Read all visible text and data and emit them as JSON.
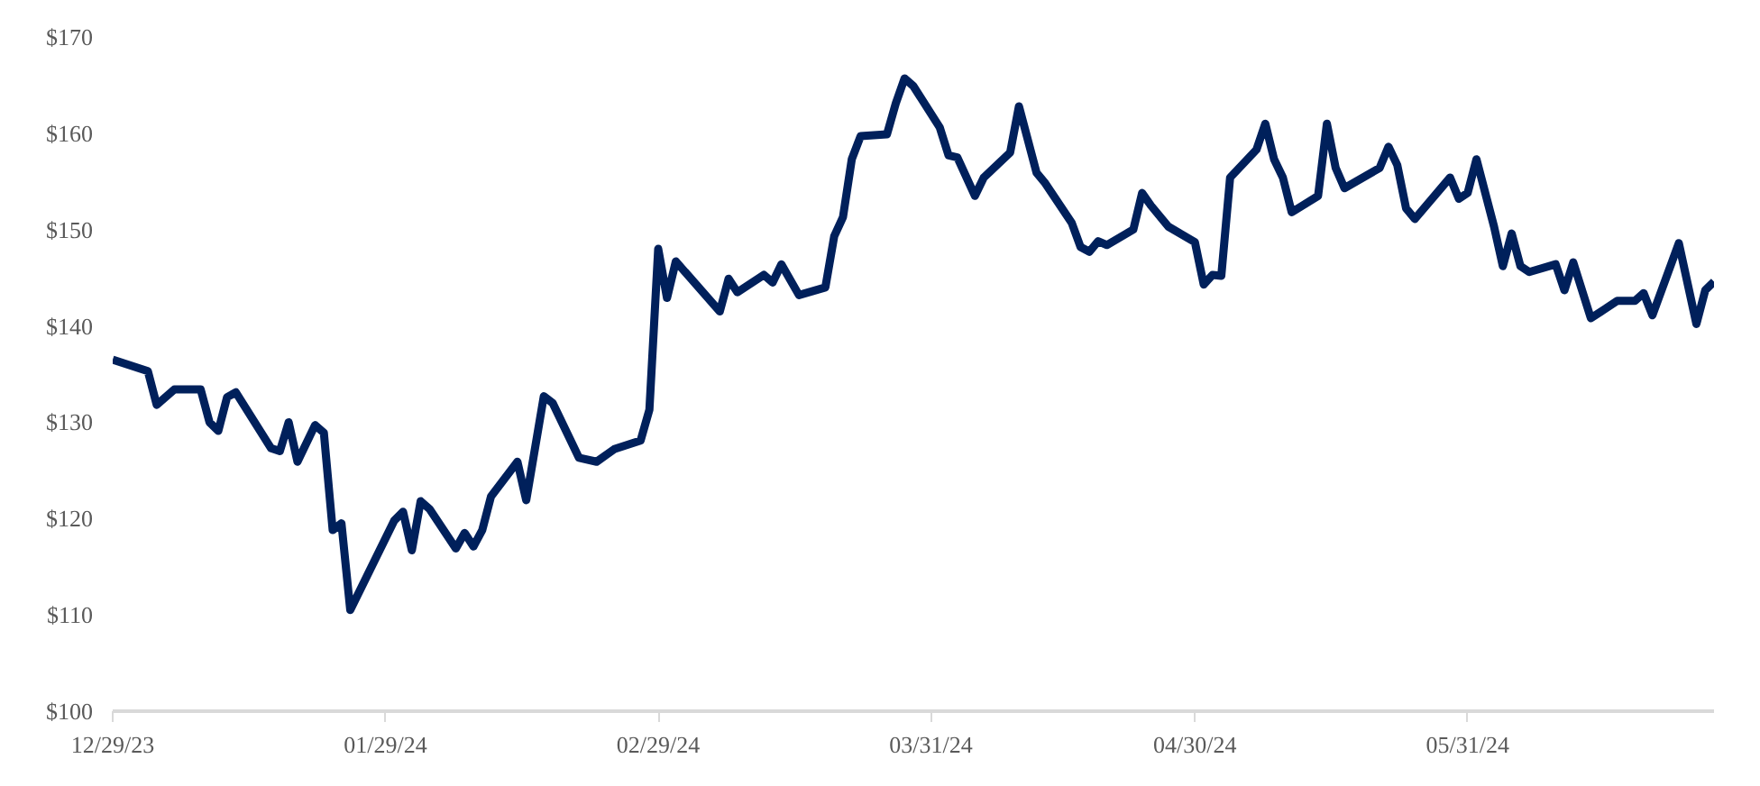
{
  "chart_data": {
    "type": "line",
    "x": [
      "2023-12-29",
      "2024-01-02",
      "2024-01-03",
      "2024-01-05",
      "2024-01-08",
      "2024-01-09",
      "2024-01-10",
      "2024-01-11",
      "2024-01-12",
      "2024-01-16",
      "2024-01-17",
      "2024-01-18",
      "2024-01-19",
      "2024-01-21",
      "2024-01-22",
      "2024-01-23",
      "2024-01-24",
      "2024-01-25",
      "2024-01-30",
      "2024-01-31",
      "2024-02-01",
      "2024-02-02",
      "2024-02-03",
      "2024-02-06",
      "2024-02-07",
      "2024-02-08",
      "2024-02-09",
      "2024-02-10",
      "2024-02-13",
      "2024-02-14",
      "2024-02-16",
      "2024-02-17",
      "2024-02-20",
      "2024-02-22",
      "2024-02-24",
      "2024-02-27",
      "2024-02-28",
      "2024-02-29",
      "2024-03-01",
      "2024-03-02",
      "2024-03-07",
      "2024-03-08",
      "2024-03-09",
      "2024-03-12",
      "2024-03-13",
      "2024-03-14",
      "2024-03-16",
      "2024-03-19",
      "2024-03-20",
      "2024-03-21",
      "2024-03-22",
      "2024-03-23",
      "2024-03-26",
      "2024-03-27",
      "2024-03-28",
      "2024-03-29",
      "2024-04-01",
      "2024-04-02",
      "2024-04-03",
      "2024-04-05",
      "2024-04-06",
      "2024-04-09",
      "2024-04-10",
      "2024-04-12",
      "2024-04-13",
      "2024-04-16",
      "2024-04-17",
      "2024-04-18",
      "2024-04-19",
      "2024-04-20",
      "2024-04-23",
      "2024-04-24",
      "2024-04-25",
      "2024-04-27",
      "2024-04-30",
      "2024-05-01",
      "2024-05-02",
      "2024-05-03",
      "2024-05-04",
      "2024-05-07",
      "2024-05-08",
      "2024-05-09",
      "2024-05-10",
      "2024-05-11",
      "2024-05-14",
      "2024-05-15",
      "2024-05-16",
      "2024-05-17",
      "2024-05-21",
      "2024-05-22",
      "2024-05-23",
      "2024-05-24",
      "2024-05-25",
      "2024-05-29",
      "2024-05-30",
      "2024-05-31",
      "2024-06-01",
      "2024-06-03",
      "2024-06-04",
      "2024-06-05",
      "2024-06-06",
      "2024-06-07",
      "2024-06-10",
      "2024-06-11",
      "2024-06-12",
      "2024-06-14",
      "2024-06-17",
      "2024-06-19",
      "2024-06-20",
      "2024-06-21",
      "2024-06-24",
      "2024-06-26",
      "2024-06-27",
      "2024-06-28"
    ],
    "series": [
      {
        "color": "#00205b",
        "values": [
          136.5,
          135.3,
          131.8,
          133.4,
          133.4,
          130.0,
          129.1,
          132.6,
          133.1,
          127.3,
          127.0,
          130.0,
          125.9,
          129.7,
          128.9,
          118.8,
          119.5,
          110.5,
          119.8,
          120.7,
          116.7,
          121.8,
          121.0,
          116.9,
          118.5,
          117.1,
          118.8,
          122.3,
          125.9,
          121.9,
          132.7,
          132.0,
          126.3,
          125.9,
          127.2,
          128.1,
          131.3,
          148.0,
          142.9,
          146.7,
          141.5,
          144.9,
          143.5,
          145.3,
          144.5,
          146.4,
          143.2,
          144.0,
          149.3,
          151.3,
          157.3,
          159.7,
          159.9,
          163.1,
          165.7,
          164.9,
          160.6,
          157.7,
          157.5,
          153.5,
          155.4,
          158.0,
          162.8,
          155.9,
          154.8,
          150.7,
          148.2,
          147.7,
          148.8,
          148.4,
          150.0,
          153.8,
          152.5,
          150.3,
          148.7,
          144.3,
          145.3,
          145.2,
          155.4,
          158.3,
          161.0,
          157.3,
          155.4,
          151.8,
          153.5,
          161.0,
          156.4,
          154.3,
          156.4,
          158.6,
          156.7,
          152.2,
          151.1,
          155.4,
          153.2,
          153.8,
          157.3,
          150.3,
          146.2,
          149.6,
          146.2,
          145.6,
          146.4,
          143.7,
          146.6,
          140.8,
          142.6,
          142.6,
          143.4,
          141.1,
          148.6,
          140.2,
          143.7,
          144.6
        ]
      }
    ],
    "xlim": [
      "2023-12-29",
      "2024-06-28"
    ],
    "xticks": [
      {
        "value": "2023-12-29",
        "label": "12/29/23"
      },
      {
        "value": "2024-01-29",
        "label": "01/29/24"
      },
      {
        "value": "2024-02-29",
        "label": "02/29/24"
      },
      {
        "value": "2024-03-31",
        "label": "03/31/24"
      },
      {
        "value": "2024-04-30",
        "label": "04/30/24"
      },
      {
        "value": "2024-05-31",
        "label": "05/31/24"
      }
    ],
    "ylim": [
      100,
      170
    ],
    "yticks": [
      {
        "value": 100,
        "label": "$100"
      },
      {
        "value": 110,
        "label": "$110"
      },
      {
        "value": 120,
        "label": "$120"
      },
      {
        "value": 130,
        "label": "$130"
      },
      {
        "value": 140,
        "label": "$140"
      },
      {
        "value": 150,
        "label": "$150"
      },
      {
        "value": 160,
        "label": "$160"
      },
      {
        "value": 170,
        "label": "$170"
      }
    ],
    "grid": false,
    "line_style": "solid",
    "marker": "none"
  }
}
